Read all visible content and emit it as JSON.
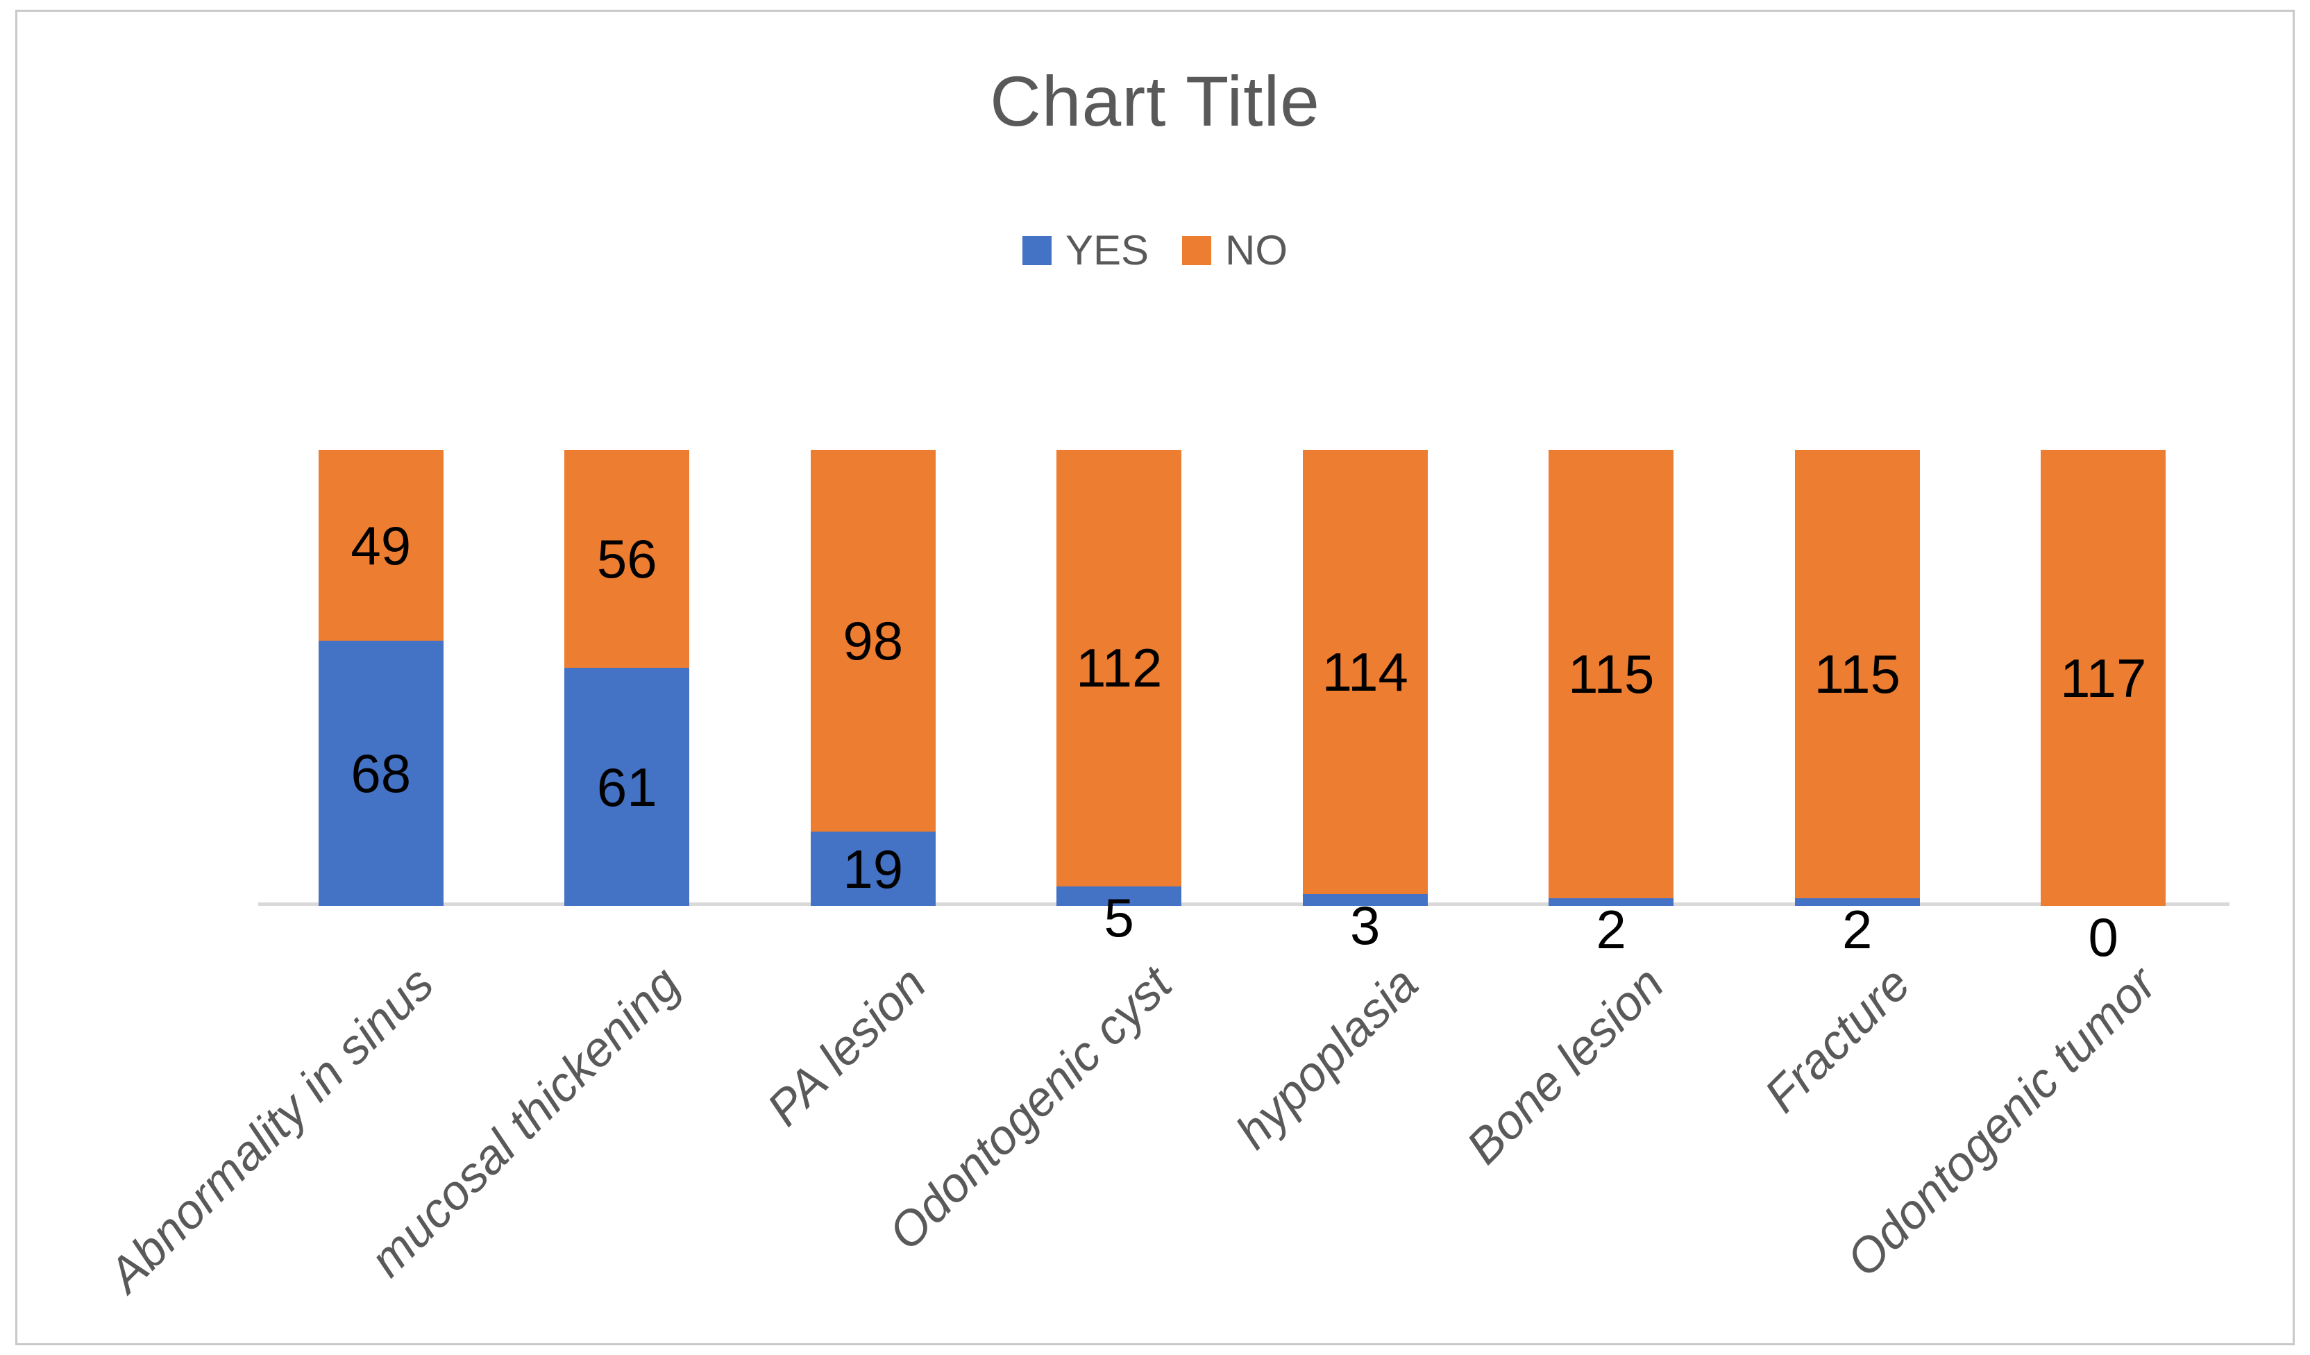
{
  "chart_data": {
    "type": "bar",
    "subtype": "stacked-column",
    "title": "Chart Title",
    "categories": [
      "Abnormality in sinus",
      "mucosal thickening",
      "PA lesion",
      "Odontogenic cyst",
      "hypoplasia",
      "Bone lesion",
      "Fracture",
      "Odontogenic tumor"
    ],
    "series": [
      {
        "name": "YES",
        "color": "#4472C4",
        "values": [
          68,
          61,
          19,
          5,
          3,
          2,
          2,
          0
        ]
      },
      {
        "name": "NO",
        "color": "#ED7D31",
        "values": [
          49,
          56,
          98,
          112,
          114,
          115,
          115,
          117
        ]
      }
    ],
    "stack_total_per_category": 117,
    "data_labels_visible": true,
    "legend_position": "top-center",
    "y_axis_visible": false,
    "gridlines": false,
    "x_tick_rotation_deg": 45,
    "axis_line_color": "#D9D9D9",
    "text_color": "#595959",
    "data_label_color": "#000000",
    "background_color": "#FFFFFF",
    "border_color": "#C9C9C9"
  }
}
